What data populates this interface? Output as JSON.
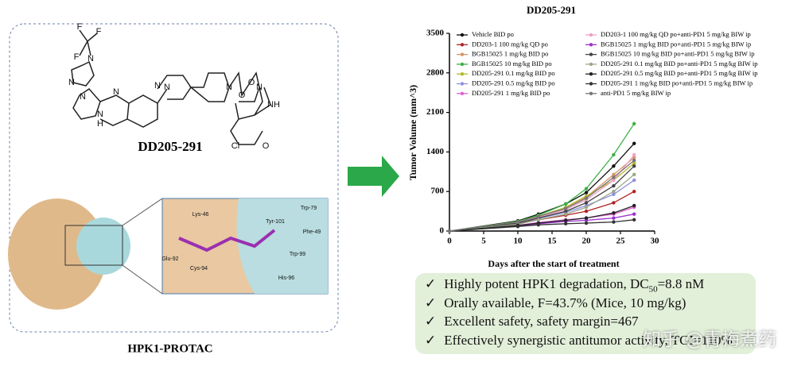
{
  "left_panel": {
    "compound": "DD205-291",
    "caption": "HPK1-PROTAC",
    "atoms": [
      "F",
      "F",
      "F",
      "N",
      "N",
      "N",
      "N",
      "N",
      "H",
      "N",
      "N",
      "N",
      "O",
      "N",
      "O",
      "O",
      "Cl",
      "N",
      "H"
    ],
    "residues": [
      "Lys-46",
      "Tyr-101",
      "Trp-79",
      "Phe-49",
      "Trp-99",
      "His-96",
      "Glu-92",
      "Cys-94"
    ]
  },
  "chart_data": {
    "type": "line",
    "title": "DD205-291",
    "x_label": "Days after the start of treatment",
    "y_label": "Tumor Volume (mm^3)",
    "x": [
      0,
      10,
      13,
      17,
      20,
      24,
      27
    ],
    "xlim": [
      0,
      30
    ],
    "xticks": [
      0,
      5,
      10,
      15,
      20,
      25,
      30
    ],
    "ylim": [
      0,
      3500
    ],
    "yticks": [
      0,
      700,
      1400,
      2100,
      2800,
      3500
    ],
    "series": [
      {
        "name": "Vehicle BID po",
        "color": "#111111",
        "values": [
          0,
          180,
          300,
          480,
          680,
          1150,
          1550
        ]
      },
      {
        "name": "DD203-1 100 mg/kg QD po",
        "color": "#b22222",
        "values": [
          0,
          130,
          200,
          280,
          350,
          500,
          700
        ]
      },
      {
        "name": "BGB15025 1 mg/kg BID po",
        "color": "#d4956a",
        "values": [
          0,
          150,
          250,
          400,
          600,
          1000,
          1300
        ]
      },
      {
        "name": "BGB15025 10 mg/kg BID po",
        "color": "#3cb043",
        "values": [
          0,
          170,
          280,
          480,
          750,
          1350,
          1900
        ]
      },
      {
        "name": "DD205-291 0.1 mg/kg BID po",
        "color": "#b5b82a",
        "values": [
          0,
          160,
          260,
          420,
          620,
          900,
          1200
        ]
      },
      {
        "name": "DD205-291 0.5 mg/kg BID po",
        "color": "#8f8fe0",
        "values": [
          0,
          140,
          220,
          330,
          450,
          650,
          900
        ]
      },
      {
        "name": "DD205-291 1 mg/kg BID po",
        "color": "#e060d0",
        "values": [
          0,
          100,
          150,
          200,
          230,
          300,
          420
        ]
      },
      {
        "name": "DD203-1 100 mg/kg QD po+anti-PD1 5 mg/kg BIW ip",
        "color": "#f0a0c8",
        "values": [
          0,
          150,
          240,
          380,
          550,
          900,
          1350
        ]
      },
      {
        "name": "BGB15025 1 mg/kg BID po+anti-PD1 5 mg/kg BIW ip",
        "color": "#9b30d0",
        "values": [
          0,
          90,
          130,
          170,
          190,
          230,
          300
        ]
      },
      {
        "name": "BGB15025 10 mg/kg BID po+anti-PD1 5 mg/kg BIW ip",
        "color": "#444444",
        "values": [
          0,
          140,
          230,
          350,
          500,
          800,
          1150
        ]
      },
      {
        "name": "DD205-291 0.1 mg/kg BID po+anti-PD1 5 mg/kg BIW ip",
        "color": "#9aa88a",
        "values": [
          0,
          120,
          200,
          300,
          420,
          700,
          1000
        ]
      },
      {
        "name": "DD205-291 0.5 mg/kg BID po+anti-PD1 5 mg/kg BIW ip",
        "color": "#222222",
        "values": [
          0,
          100,
          140,
          190,
          230,
          320,
          450
        ]
      },
      {
        "name": "DD205-291 1 mg/kg BID po+anti-PD1 5 mg/kg BIW ip",
        "color": "#333333",
        "values": [
          0,
          80,
          110,
          130,
          140,
          160,
          200
        ]
      },
      {
        "name": "anti-PD1 5 mg/kg BIW ip",
        "color": "#777777",
        "values": [
          0,
          160,
          260,
          400,
          580,
          950,
          1250
        ]
      }
    ]
  },
  "highlights": [
    {
      "mark": "✓",
      "text": "Highly potent HPK1 degradation, DC",
      "sub": "50",
      "after": "=8.8 nM"
    },
    {
      "mark": "✓",
      "text": "Orally available, F=43.7% (Mice, 10 mg/kg)"
    },
    {
      "mark": "✓",
      "text": "Excellent safety, safety margin=467"
    },
    {
      "mark": "✓",
      "text": "Effectively synergistic antitumor activity, TGI=110%"
    }
  ],
  "watermark": "知乎 @青梅煮药"
}
